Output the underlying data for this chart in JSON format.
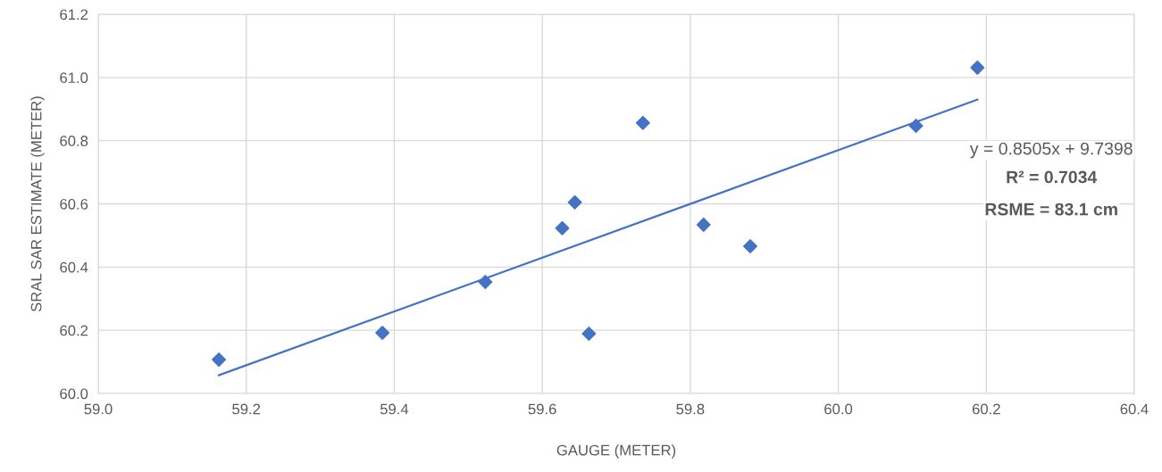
{
  "chart_data": {
    "type": "scatter",
    "xlabel": "GAUGE (METER)",
    "ylabel": "SRAL SAR ESTIMATE (METER)",
    "x": [
      59.163,
      59.384,
      59.523,
      59.627,
      59.644,
      59.663,
      59.736,
      59.818,
      59.881,
      60.105,
      60.188
    ],
    "series": [
      {
        "type": "scatter",
        "color": "#4472c4",
        "marker": "diamond",
        "values": [
          60.107,
          60.192,
          60.353,
          60.523,
          60.605,
          60.189,
          60.856,
          60.534,
          60.466,
          60.847,
          61.031
        ]
      },
      {
        "type": "line",
        "color": "#4472c4",
        "marker": "none",
        "line_style": "solid",
        "x": [
          59.163,
          60.188
        ],
        "values": [
          60.058,
          60.93
        ]
      }
    ],
    "annotations": [
      "y = 0.8505x + 9.7398",
      "R² = 0.7034",
      "RSME = 83.1 cm"
    ],
    "xlim": [
      59.0,
      60.4
    ],
    "ylim": [
      60.0,
      61.2
    ],
    "xticks": [
      {
        "value": 59.0,
        "label": "59.0"
      },
      {
        "value": 59.2,
        "label": "59.2"
      },
      {
        "value": 59.4,
        "label": "59.4"
      },
      {
        "value": 59.6,
        "label": "59.6"
      },
      {
        "value": 59.8,
        "label": "59.8"
      },
      {
        "value": 60.0,
        "label": "60.0"
      },
      {
        "value": 60.2,
        "label": "60.2"
      },
      {
        "value": 60.4,
        "label": "60.4"
      }
    ],
    "yticks": [
      {
        "value": 60.0,
        "label": "60.0"
      },
      {
        "value": 60.2,
        "label": "60.2"
      },
      {
        "value": 60.4,
        "label": "60.4"
      },
      {
        "value": 60.6,
        "label": "60.6"
      },
      {
        "value": 60.8,
        "label": "60.8"
      },
      {
        "value": 61.0,
        "label": "61.0"
      },
      {
        "value": 61.2,
        "label": "61.2"
      }
    ],
    "grid": true,
    "legend": false
  }
}
